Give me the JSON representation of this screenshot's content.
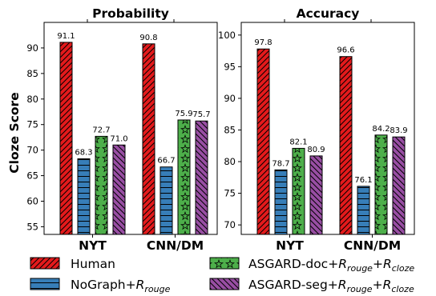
{
  "chart_data": [
    {
      "type": "bar",
      "title": "Probability",
      "ylabel": "Cloze Score",
      "categories": [
        "NYT",
        "CNN/DM"
      ],
      "ylim": [
        53.5,
        95
      ],
      "yticks": [
        55,
        60,
        65,
        70,
        75,
        80,
        85,
        90
      ],
      "series": [
        {
          "name": "Human",
          "values": [
            91.1,
            90.8
          ],
          "labels": [
            "91.1",
            "90.8"
          ]
        },
        {
          "name": "NoGraph+R_rouge",
          "values": [
            68.3,
            66.7
          ],
          "labels": [
            "68.3",
            "66.7"
          ]
        },
        {
          "name": "ASGARD-doc+R_rouge+R_cloze",
          "values": [
            72.7,
            75.9
          ],
          "labels": [
            "72.7",
            "75.9"
          ]
        },
        {
          "name": "ASGARD-seg+R_rouge+R_cloze",
          "values": [
            71.0,
            75.7
          ],
          "labels": [
            "71.0",
            "75.7"
          ]
        }
      ]
    },
    {
      "type": "bar",
      "title": "Accuracy",
      "ylabel": "",
      "categories": [
        "NYT",
        "CNN/DM"
      ],
      "ylim": [
        68.5,
        102
      ],
      "yticks": [
        70,
        75,
        80,
        85,
        90,
        95,
        100
      ],
      "series": [
        {
          "name": "Human",
          "values": [
            97.8,
            96.6
          ],
          "labels": [
            "97.8",
            "96.6"
          ]
        },
        {
          "name": "NoGraph+R_rouge",
          "values": [
            78.7,
            76.1
          ],
          "labels": [
            "78.7",
            "76.1"
          ]
        },
        {
          "name": "ASGARD-doc+R_rouge+R_cloze",
          "values": [
            82.1,
            84.2
          ],
          "labels": [
            "82.1",
            "84.2"
          ]
        },
        {
          "name": "ASGARD-seg+R_rouge+R_cloze",
          "values": [
            80.9,
            83.9
          ],
          "labels": [
            "80.9",
            "83.9"
          ]
        }
      ]
    }
  ],
  "legend": {
    "placement": "bottom",
    "items": [
      {
        "key": "human",
        "text": "Human",
        "color": "#e41a1c",
        "hatch": "diagonal"
      },
      {
        "key": "nograph",
        "base": "NoGraph+",
        "sub1": "rouge",
        "color": "#377eb8",
        "hatch": "horizontal"
      },
      {
        "key": "doc",
        "base": "ASGARD-doc+",
        "sub1": "rouge",
        "mid": "+",
        "sub2": "cloze",
        "color": "#4daf4a",
        "hatch": "stars"
      },
      {
        "key": "seg",
        "base": "ASGARD-seg+",
        "sub1": "rouge",
        "mid": "+",
        "sub2": "cloze",
        "color": "#984ea3",
        "hatch": "backdiag"
      }
    ]
  }
}
